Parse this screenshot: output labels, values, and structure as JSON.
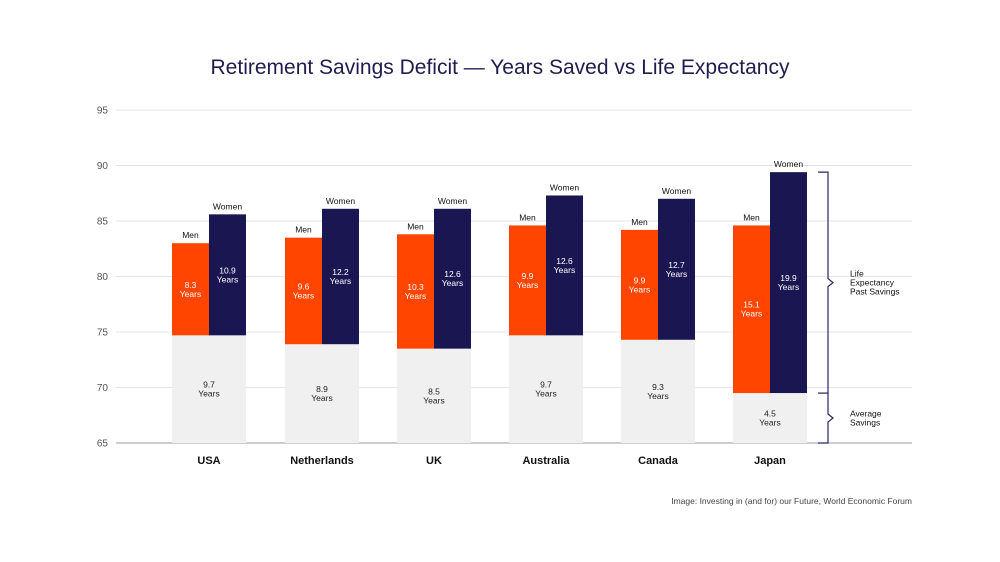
{
  "chart_data": {
    "type": "bar",
    "title": "Retirement Savings Deficit — Years Saved vs Life Expectancy",
    "xlabel": "",
    "ylabel": "",
    "ylim": [
      65,
      95
    ],
    "yticks": [
      65,
      70,
      75,
      80,
      85,
      90,
      95
    ],
    "grid": true,
    "categories": [
      "USA",
      "Netherlands",
      "UK",
      "Australia",
      "Canada",
      "Japan"
    ],
    "series": [
      {
        "name": "Average Savings",
        "values": [
          9.7,
          8.9,
          8.5,
          9.7,
          9.3,
          4.5
        ]
      },
      {
        "name": "Men",
        "values": [
          8.3,
          9.6,
          10.3,
          9.9,
          9.9,
          15.1
        ]
      },
      {
        "name": "Women",
        "values": [
          10.9,
          12.2,
          12.6,
          12.6,
          12.7,
          19.9
        ]
      }
    ],
    "savings_labels": [
      "9.7\nYears",
      "8.9\nYears",
      "8.5\nYears",
      "9.7\nYears",
      "9.3\nYears",
      "4.5\nYears"
    ],
    "men_labels": [
      "8.3\nYears",
      "9.6\nYears",
      "10.3\nYears",
      "9.9\nYears",
      "9.9\nYears",
      "15.1\nYears"
    ],
    "women_labels": [
      "10.9\nYears",
      "12.2\nYears",
      "12.6\nYears",
      "12.6\nYears",
      "12.7\nYears",
      "19.9\nYears"
    ],
    "men_label": "Men",
    "women_label": "Women",
    "bracket_labels": {
      "life": "Life\nExpectancy\nPast Savings",
      "savings": "Average\nSavings"
    },
    "colors": {
      "savings": "#f0f0f0",
      "men": "#ff4500",
      "women": "#1a1651",
      "grid": "#e6e6e6",
      "axis": "#9a9aa8",
      "bracket": "#2a2660",
      "title": "#1f1d4e"
    }
  },
  "source": "Image: Investing in (and for) our Future, World Economic Forum"
}
